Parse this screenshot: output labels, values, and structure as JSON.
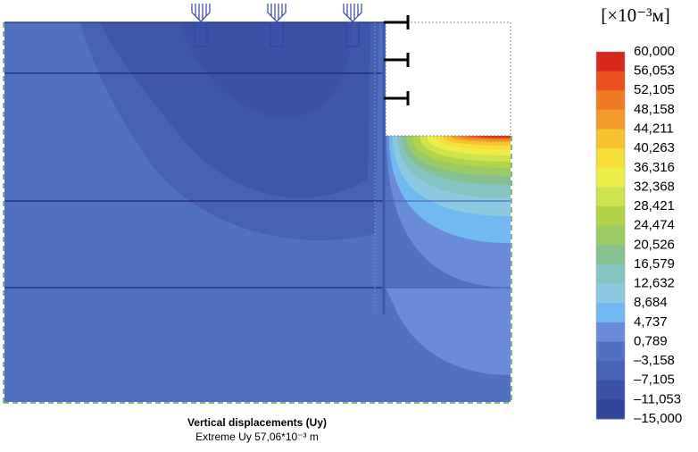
{
  "caption": {
    "title": "Vertical displacements (Uy)",
    "subtitle": "Extreme Uy 57,06*10⁻³ m"
  },
  "legend": {
    "unit": "[×10⁻³м]",
    "labels": [
      "60,000",
      "56,053",
      "52,105",
      "48,158",
      "44,211",
      "40,263",
      "36,316",
      "32,368",
      "28,421",
      "24,474",
      "20,526",
      "16,579",
      "12,632",
      "8,684",
      "4,737",
      "0,789",
      "–3,158",
      "–7,105",
      "–11,053",
      "–15,000"
    ],
    "colors": [
      "#d8281e",
      "#e8501f",
      "#ef7b22",
      "#f29a2b",
      "#f7c22f",
      "#f6de3b",
      "#eded49",
      "#cfe34d",
      "#b2d44b",
      "#9bcb64",
      "#86c28f",
      "#86c4c4",
      "#8dc9e0",
      "#73b9f1",
      "#6a8bd8",
      "#5070c2",
      "#4562b4",
      "#3a51a6",
      "#30459a"
    ]
  }
}
